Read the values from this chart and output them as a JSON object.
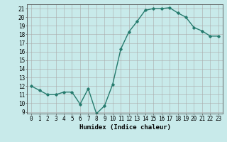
{
  "x": [
    0,
    1,
    2,
    3,
    4,
    5,
    6,
    7,
    8,
    9,
    10,
    11,
    12,
    13,
    14,
    15,
    16,
    17,
    18,
    19,
    20,
    21,
    22,
    23
  ],
  "y": [
    12.0,
    11.5,
    11.0,
    11.0,
    11.3,
    11.3,
    9.9,
    11.7,
    8.8,
    9.7,
    12.2,
    16.3,
    18.3,
    19.5,
    20.8,
    21.0,
    21.0,
    21.1,
    20.5,
    20.0,
    18.8,
    18.4,
    17.8,
    17.8
  ],
  "line_color": "#267B6E",
  "marker": "D",
  "marker_size": 1.8,
  "bg_color": "#c8eaea",
  "grid_color": "#aaaaaa",
  "xlabel": "Humidex (Indice chaleur)",
  "xlim": [
    -0.5,
    23.5
  ],
  "ylim": [
    8.8,
    21.5
  ],
  "yticks": [
    9,
    10,
    11,
    12,
    13,
    14,
    15,
    16,
    17,
    18,
    19,
    20,
    21
  ],
  "xticks": [
    0,
    1,
    2,
    3,
    4,
    5,
    6,
    7,
    8,
    9,
    10,
    11,
    12,
    13,
    14,
    15,
    16,
    17,
    18,
    19,
    20,
    21,
    22,
    23
  ],
  "tick_fontsize": 5.5,
  "label_fontsize": 6.5,
  "line_width": 1.0
}
